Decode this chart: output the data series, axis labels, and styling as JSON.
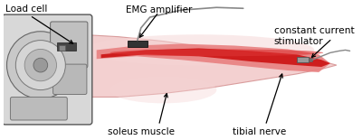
{
  "fig_width": 4.0,
  "fig_height": 1.55,
  "dpi": 100,
  "background_color": "#ffffff",
  "labels": {
    "load_cell": "Load cell",
    "emg": "EMG amplifier",
    "constant_current": "constant current\nstimulator",
    "soleus": "soleus muscle",
    "tibial": "tibial nerve"
  },
  "foot_skin": "#f2c8c8",
  "foot_skin_edge": "#d49090",
  "foot_light": "#f5d5d5",
  "device_body": "#cccccc",
  "device_dark": "#888888",
  "device_darker": "#555555",
  "device_outline": "#444444",
  "muscle_red": "#cc1111",
  "muscle_pink": "#e88080",
  "muscle_light": "#f0aaaa",
  "cable_color": "#888888",
  "text_fontsize": 7.5
}
